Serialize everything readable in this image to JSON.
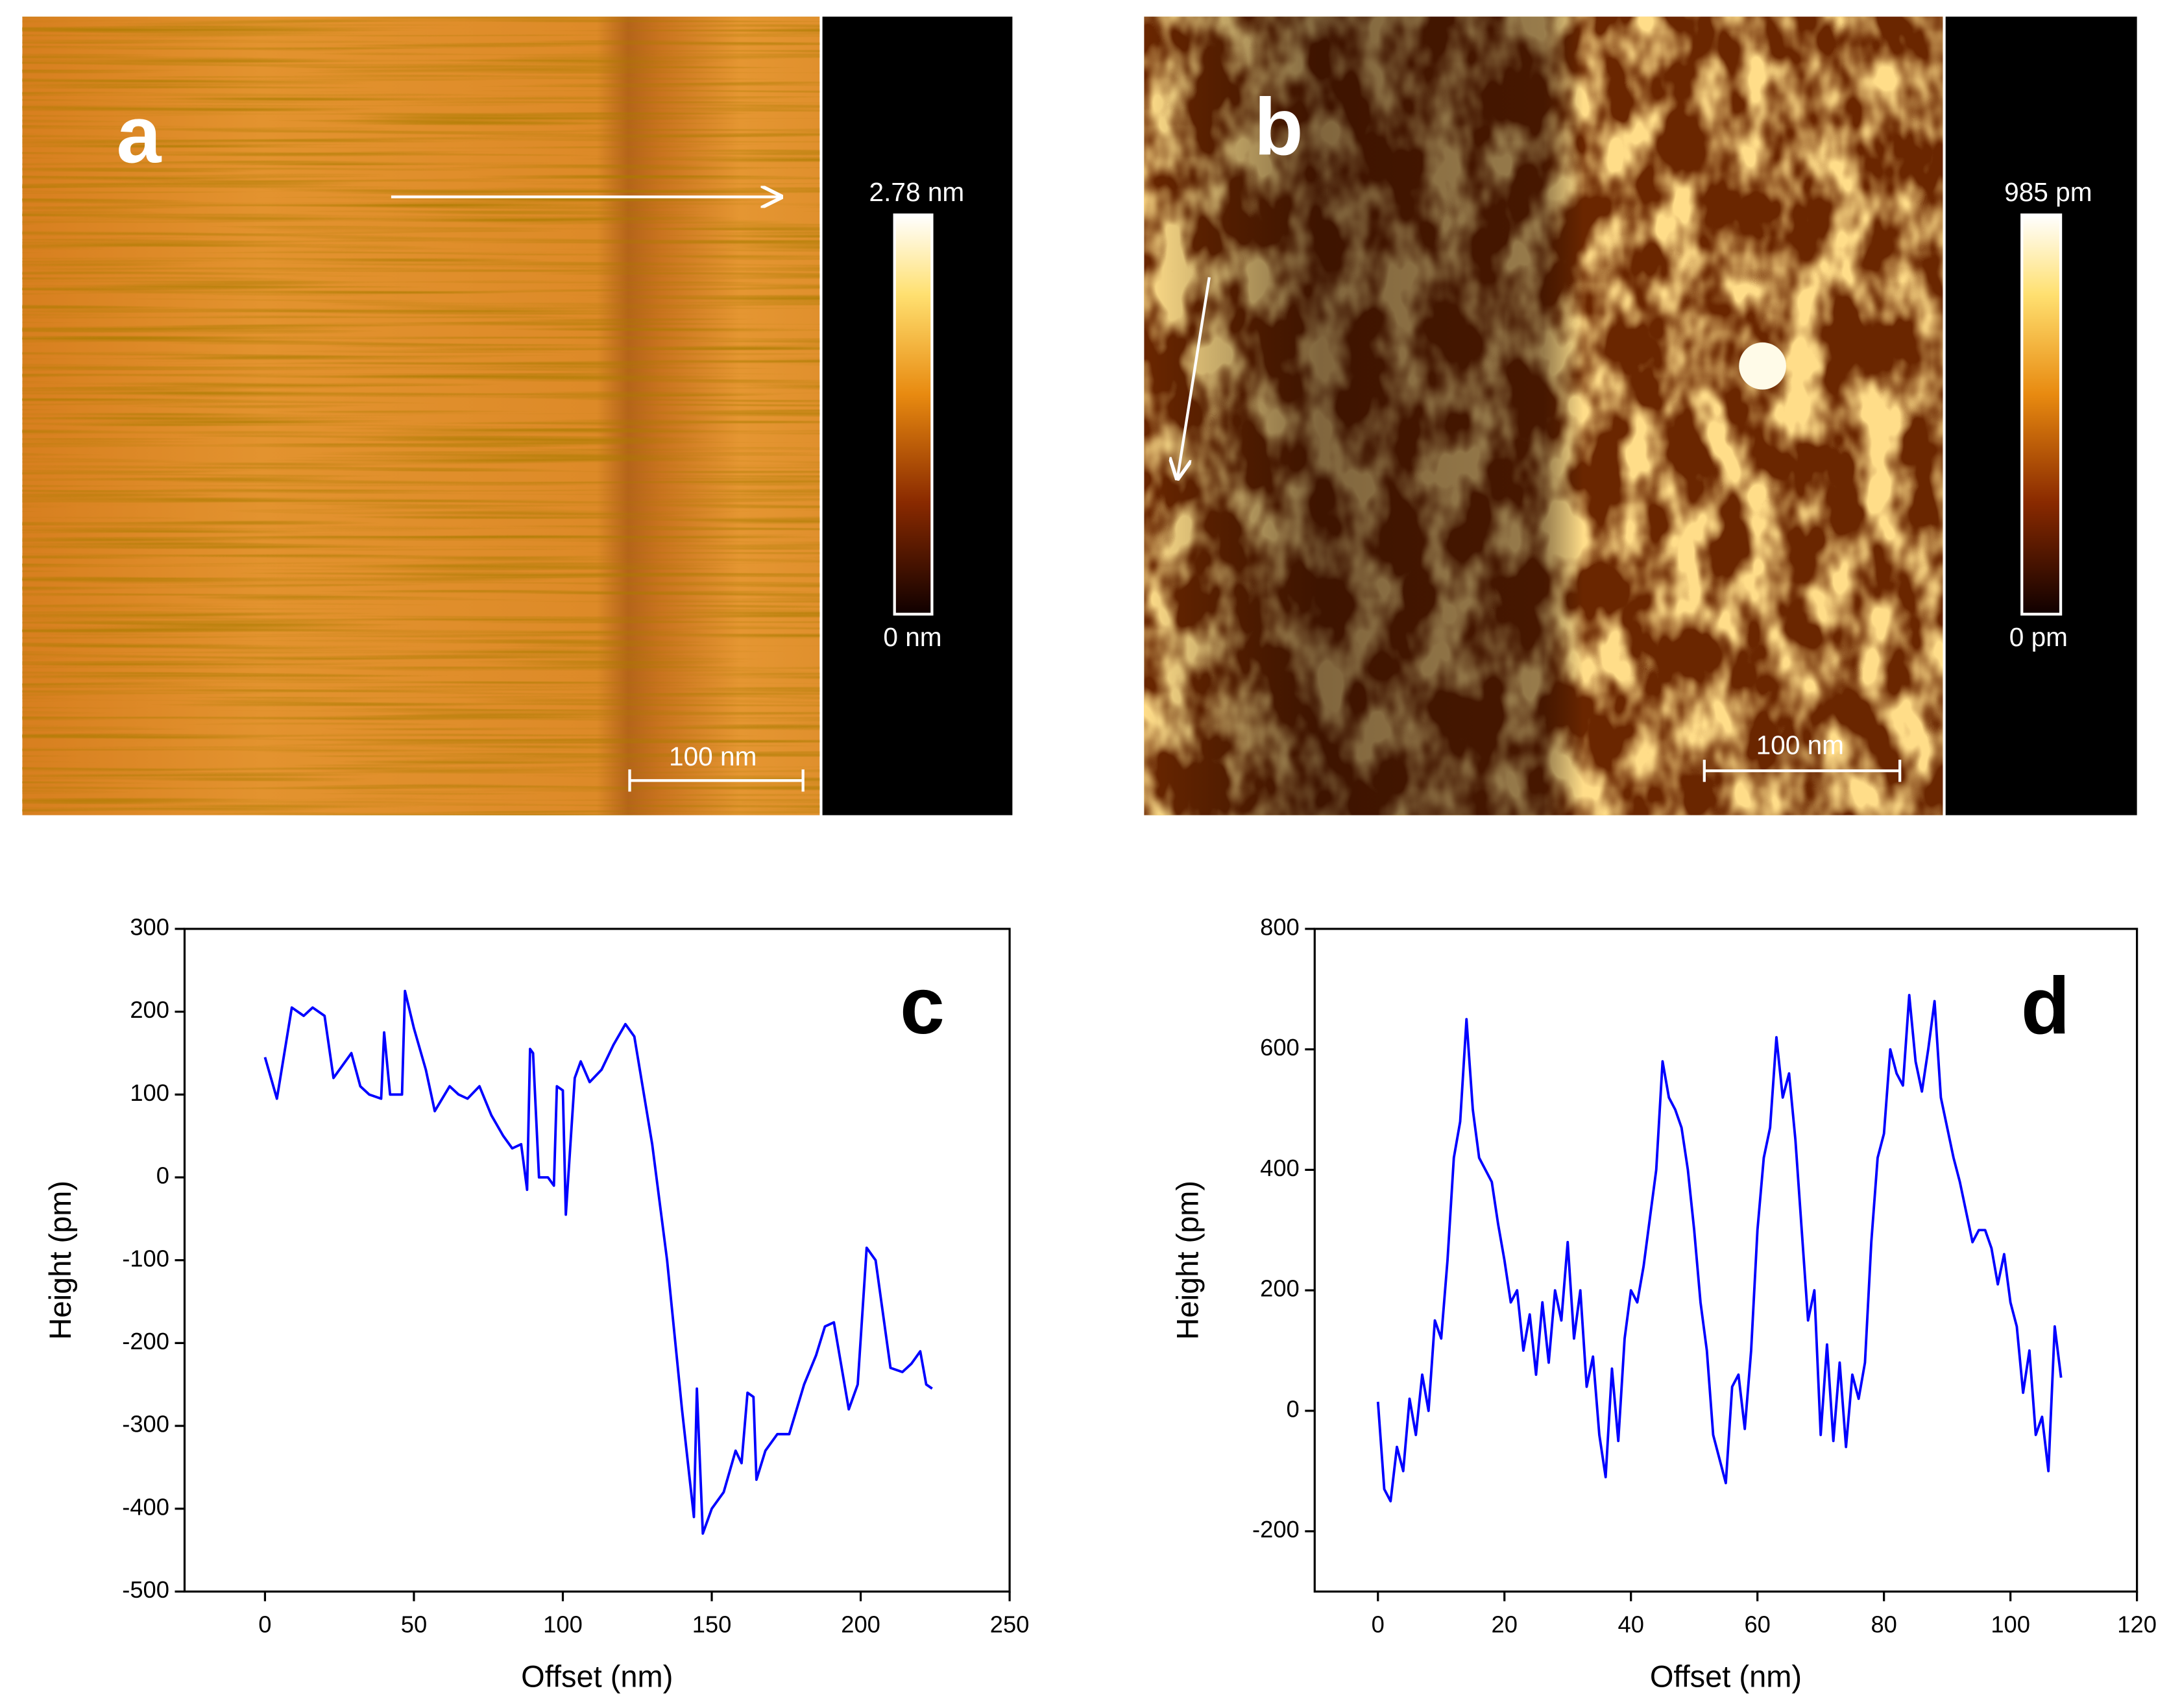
{
  "images": [
    {
      "label": "a",
      "colorbar_max": "2.78 nm",
      "colorbar_min": "0 nm",
      "scale_bar": "100 nm"
    },
    {
      "label": "b",
      "colorbar_max": "985 pm",
      "colorbar_min": "0 pm",
      "scale_bar": "100 nm"
    }
  ],
  "chart_data": [
    {
      "type": "line",
      "panel_label": "c",
      "xlabel": "Offset (nm)",
      "ylabel": "Height (pm)",
      "xlim": [
        -27,
        250
      ],
      "xticks": [
        0,
        50,
        100,
        150,
        200,
        250
      ],
      "ylim": [
        -500,
        300
      ],
      "yticks": [
        -500,
        -400,
        -300,
        -200,
        -100,
        0,
        100,
        200,
        300
      ],
      "series": [
        {
          "color": "#0000ff",
          "x": [
            0,
            4,
            9,
            13,
            16,
            20,
            23,
            26,
            29,
            32,
            35,
            39,
            40,
            42,
            46,
            47,
            50,
            54,
            57,
            62,
            65,
            68,
            72,
            76,
            80,
            83,
            86,
            88,
            89,
            90,
            92,
            95,
            97,
            98,
            100,
            101,
            104,
            106,
            109,
            113,
            117,
            121,
            124,
            130,
            135,
            140,
            144,
            145,
            147,
            150,
            154,
            158,
            160,
            162,
            164,
            165,
            168,
            172,
            176,
            181,
            185,
            188,
            191,
            196,
            199,
            202,
            205,
            210,
            214,
            217,
            220,
            222,
            224
          ],
          "values": [
            145,
            95,
            205,
            195,
            205,
            195,
            120,
            135,
            150,
            110,
            100,
            95,
            175,
            100,
            100,
            225,
            180,
            130,
            80,
            110,
            100,
            95,
            110,
            75,
            50,
            35,
            40,
            -15,
            155,
            150,
            0,
            0,
            -10,
            110,
            105,
            -45,
            120,
            140,
            115,
            130,
            160,
            185,
            170,
            40,
            -100,
            -280,
            -410,
            -255,
            -430,
            -400,
            -380,
            -330,
            -345,
            -260,
            -265,
            -365,
            -330,
            -310,
            -310,
            -250,
            -215,
            -180,
            -175,
            -280,
            -250,
            -85,
            -100,
            -230,
            -235,
            -225,
            -210,
            -250,
            -255
          ]
        }
      ]
    },
    {
      "type": "line",
      "panel_label": "d",
      "xlabel": "Offset (nm)",
      "ylabel": "Height (pm)",
      "xlim": [
        -10,
        120
      ],
      "xticks": [
        0,
        20,
        40,
        60,
        80,
        100,
        120
      ],
      "ylim": [
        -300,
        800
      ],
      "yticks": [
        -200,
        0,
        200,
        400,
        600,
        800
      ],
      "series": [
        {
          "color": "#0000ff",
          "x": [
            0,
            1,
            2,
            3,
            4,
            5,
            6,
            7,
            8,
            9,
            10,
            11,
            12,
            13,
            14,
            15,
            16,
            17,
            18,
            19,
            20,
            21,
            22,
            23,
            24,
            25,
            26,
            27,
            28,
            29,
            30,
            31,
            32,
            33,
            34,
            35,
            36,
            37,
            38,
            39,
            40,
            41,
            42,
            43,
            44,
            45,
            46,
            47,
            48,
            49,
            50,
            51,
            52,
            53,
            54,
            55,
            56,
            57,
            58,
            59,
            60,
            61,
            62,
            63,
            64,
            65,
            66,
            67,
            68,
            69,
            70,
            71,
            72,
            73,
            74,
            75,
            76,
            77,
            78,
            79,
            80,
            81,
            82,
            83,
            84,
            85,
            86,
            87,
            88,
            89,
            90,
            91,
            92,
            93,
            94,
            95,
            96,
            97,
            98,
            99,
            100,
            101,
            102,
            103,
            104,
            105,
            106,
            107,
            108
          ],
          "values": [
            15,
            -130,
            -150,
            -60,
            -100,
            20,
            -40,
            60,
            0,
            150,
            120,
            250,
            420,
            480,
            650,
            500,
            420,
            400,
            380,
            310,
            250,
            180,
            200,
            100,
            160,
            60,
            180,
            80,
            200,
            150,
            280,
            120,
            200,
            40,
            90,
            -40,
            -110,
            70,
            -50,
            120,
            200,
            180,
            240,
            320,
            400,
            580,
            520,
            500,
            470,
            400,
            300,
            180,
            100,
            -40,
            -80,
            -120,
            40,
            60,
            -30,
            100,
            300,
            420,
            470,
            620,
            520,
            560,
            450,
            300,
            150,
            200,
            -40,
            110,
            -50,
            80,
            -60,
            60,
            20,
            80,
            280,
            420,
            460,
            600,
            560,
            540,
            690,
            580,
            530,
            600,
            680,
            520,
            470,
            420,
            380,
            330,
            280,
            300,
            300,
            270,
            210,
            260,
            180,
            140,
            30,
            100,
            -40,
            -10,
            -100,
            140,
            55
          ]
        }
      ]
    }
  ]
}
